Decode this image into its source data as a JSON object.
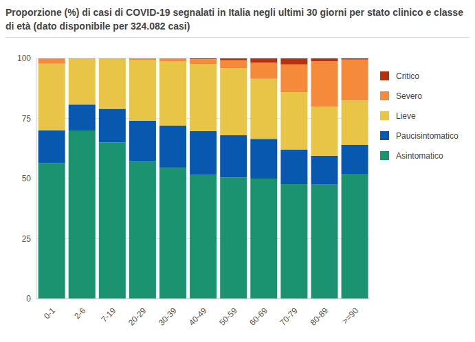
{
  "chart_data": {
    "type": "bar",
    "title": "Proporzione (%) di casi di COVID-19 segnalati in Italia negli ultimi 30 giorni per stato clinico e classe di età (dato disponibile per 324.082 casi)",
    "categories": [
      "0-1",
      "2-6",
      "7-19",
      "20-29",
      "30-39",
      "40-49",
      "50-59",
      "60-69",
      "70-79",
      "80-89",
      ">=90"
    ],
    "stacked": true,
    "grid": true,
    "legend": "right",
    "ylim": [
      0,
      100
    ],
    "yticks": [
      0,
      25,
      50,
      75,
      100
    ],
    "series": [
      {
        "name": "Asintomatico",
        "color": "#1b9370",
        "values": [
          56.5,
          70,
          65,
          57,
          54.5,
          51.5,
          50.5,
          50,
          47.7,
          47.5,
          52
        ]
      },
      {
        "name": "Paucisintomatico",
        "color": "#0858b0",
        "values": [
          13.5,
          10.8,
          14,
          17,
          17.5,
          18.2,
          17.5,
          16.5,
          14.3,
          12,
          12
        ]
      },
      {
        "name": "Lieve",
        "color": "#e8c447",
        "values": [
          27.8,
          19,
          20.8,
          25.3,
          26.7,
          28,
          28,
          25,
          24,
          20.5,
          18.5
        ]
      },
      {
        "name": "Severo",
        "color": "#f58a3a",
        "values": [
          2.2,
          0.2,
          0.2,
          0.6,
          1.2,
          2,
          3.2,
          6.8,
          11.5,
          18.8,
          17
        ]
      },
      {
        "name": "Critico",
        "color": "#b5300e",
        "values": [
          0,
          0,
          0,
          0.1,
          0.1,
          0.3,
          0.8,
          1.7,
          2.5,
          1.2,
          0.5
        ]
      }
    ]
  }
}
